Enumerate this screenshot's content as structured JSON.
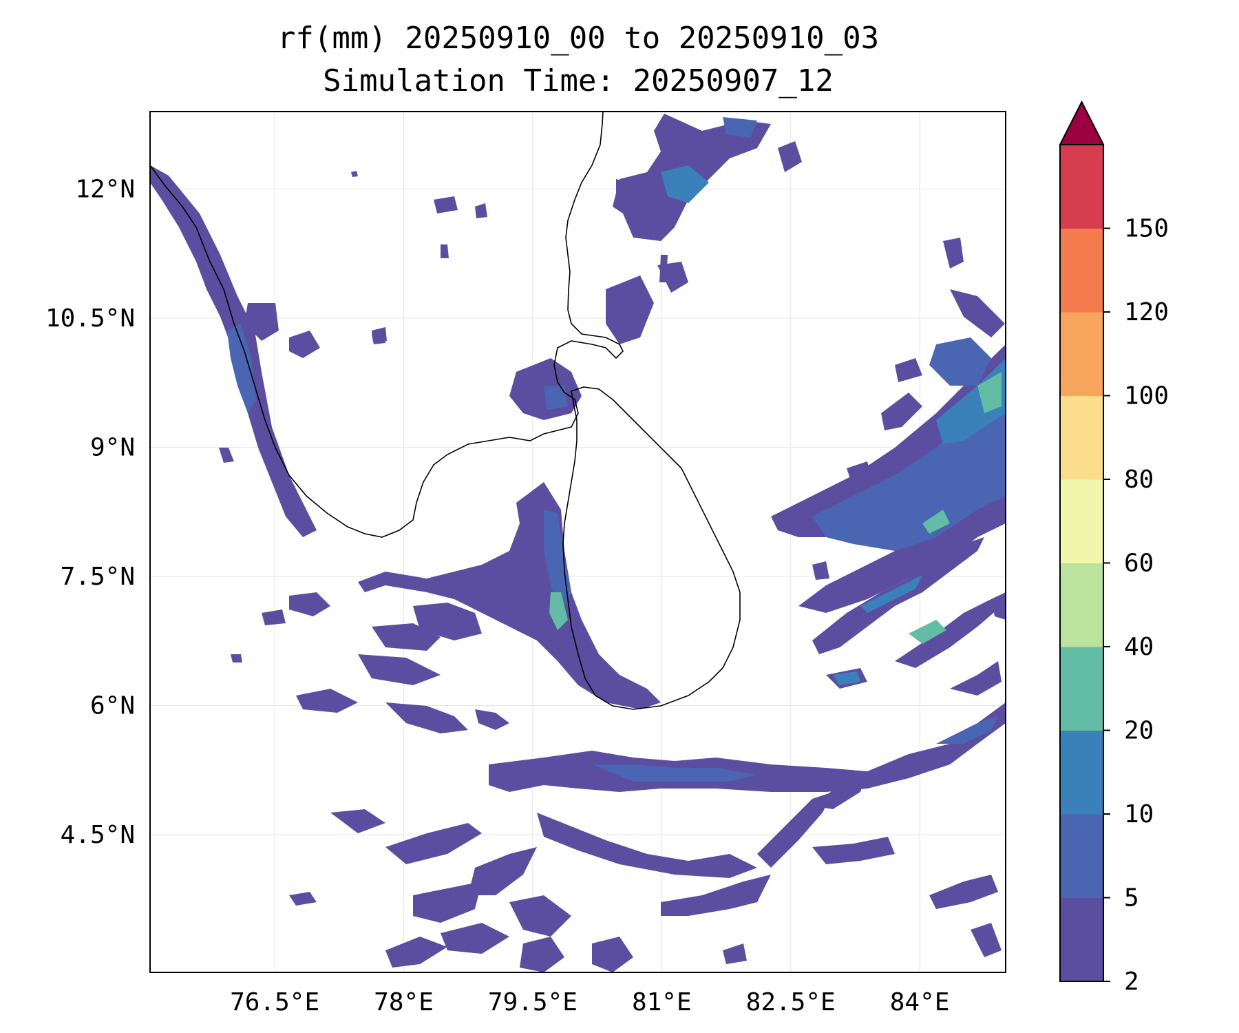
{
  "title": "rf(mm) 20250910_00 to 20250910_03",
  "subtitle": "Simulation Time: 20250907_12",
  "map": {
    "region": "Sri Lanka and southern India",
    "extent": {
      "lon": [
        75.05,
        85.0
      ],
      "lat": [
        2.9,
        12.9
      ]
    },
    "lon_ticks": [
      "76.5°E",
      "78°E",
      "79.5°E",
      "81°E",
      "82.5°E",
      "84°E"
    ],
    "lon_values": [
      76.5,
      78.0,
      79.5,
      81.0,
      82.5,
      84.0
    ],
    "lat_ticks": [
      "12°N",
      "10.5°N",
      "9°N",
      "7.5°N",
      "6°N",
      "4.5°N"
    ],
    "lat_values": [
      12.0,
      10.5,
      9.0,
      7.5,
      6.0,
      4.5
    ],
    "grid": true,
    "coastline_color": "#000000"
  },
  "colorbar": {
    "levels": [
      "2",
      "5",
      "10",
      "20",
      "40",
      "60",
      "80",
      "100",
      "120",
      "150"
    ],
    "colors": [
      "#5b4ea0",
      "#4a66b3",
      "#3a80ba",
      "#63bca5",
      "#bbe39e",
      "#f1f7aa",
      "#fbdd8c",
      "#f9a45d",
      "#f47b4d",
      "#d63d4f"
    ],
    "extend_color": "#9e0142",
    "extend": "max"
  }
}
